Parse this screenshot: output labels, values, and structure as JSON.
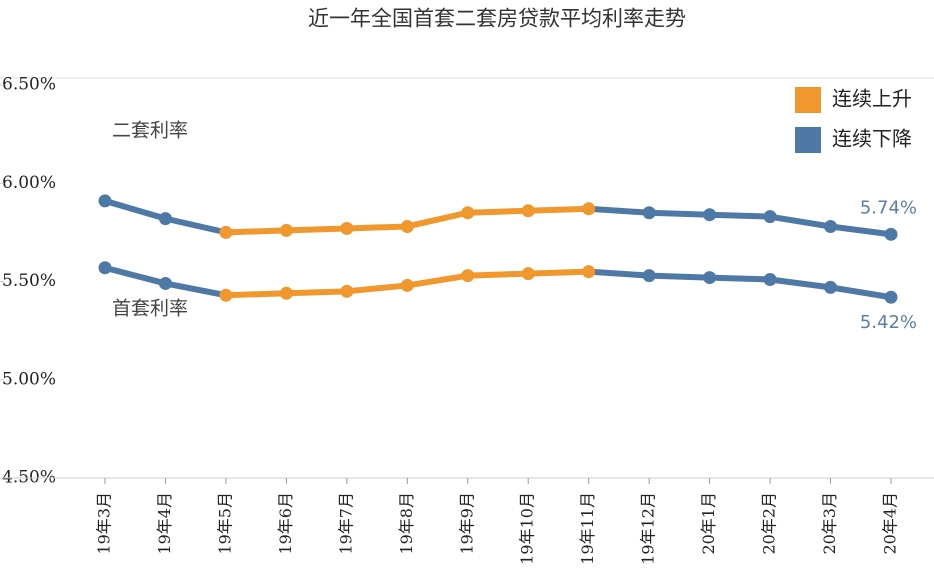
{
  "chart_data": {
    "type": "line",
    "title": "近一年全国首套二套房贷款平均利率走势",
    "categories": [
      "19年3月",
      "19年4月",
      "19年5月",
      "19年6月",
      "19年7月",
      "19年8月",
      "19年9月",
      "19年10月",
      "19年11月",
      "19年12月",
      "20年1月",
      "20年2月",
      "20年3月",
      "20年4月"
    ],
    "series": [
      {
        "name": "二套利率",
        "values": [
          5.91,
          5.82,
          5.75,
          5.76,
          5.77,
          5.78,
          5.85,
          5.86,
          5.87,
          5.85,
          5.84,
          5.83,
          5.78,
          5.74
        ],
        "value_labels": [
          null,
          null,
          null,
          null,
          null,
          null,
          null,
          null,
          null,
          null,
          null,
          null,
          null,
          "5.74%"
        ]
      },
      {
        "name": "首套利率",
        "values": [
          5.57,
          5.49,
          5.43,
          5.44,
          5.45,
          5.48,
          5.53,
          5.54,
          5.55,
          5.53,
          5.52,
          5.51,
          5.47,
          5.42
        ],
        "value_labels": [
          null,
          null,
          null,
          null,
          null,
          null,
          null,
          null,
          null,
          null,
          null,
          null,
          null,
          "5.42%"
        ]
      }
    ],
    "legend": [
      {
        "name": "连续上升",
        "color": "#f0982e"
      },
      {
        "name": "连续下降",
        "color": "#4e79a7"
      }
    ],
    "ylim": [
      4.5,
      6.5
    ],
    "yticks": [
      {
        "value": 6.5,
        "label": "6.50%"
      },
      {
        "value": 6.0,
        "label": "6.00%"
      },
      {
        "value": 5.5,
        "label": "5.50%"
      },
      {
        "value": 5.0,
        "label": "5.00%"
      },
      {
        "value": 4.5,
        "label": "4.50%"
      }
    ]
  }
}
